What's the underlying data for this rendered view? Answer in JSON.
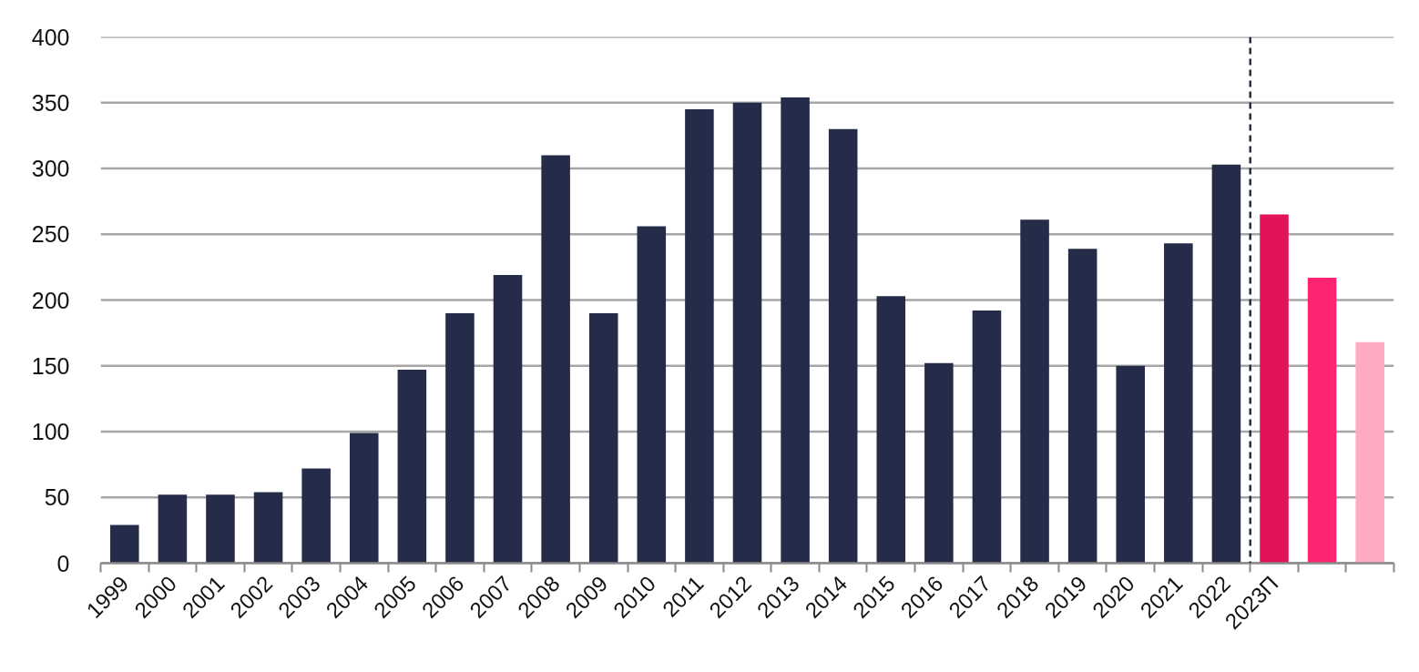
{
  "chart_data": {
    "type": "bar",
    "categories": [
      "1999",
      "2000",
      "2001",
      "2002",
      "2003",
      "2004",
      "2005",
      "2006",
      "2007",
      "2008",
      "2009",
      "2010",
      "2011",
      "2012",
      "2013",
      "2014",
      "2015",
      "2016",
      "2017",
      "2018",
      "2019",
      "2020",
      "2021",
      "2022",
      "2023П",
      null,
      null
    ],
    "values": [
      29,
      52,
      52,
      54,
      72,
      99,
      147,
      190,
      219,
      310,
      190,
      256,
      345,
      350,
      354,
      330,
      203,
      152,
      192,
      261,
      239,
      150,
      243,
      303,
      265,
      217,
      168
    ],
    "colors": [
      "#252c4a",
      "#252c4a",
      "#252c4a",
      "#252c4a",
      "#252c4a",
      "#252c4a",
      "#252c4a",
      "#252c4a",
      "#252c4a",
      "#252c4a",
      "#252c4a",
      "#252c4a",
      "#252c4a",
      "#252c4a",
      "#252c4a",
      "#252c4a",
      "#252c4a",
      "#252c4a",
      "#252c4a",
      "#252c4a",
      "#252c4a",
      "#252c4a",
      "#252c4a",
      "#252c4a",
      "#e2125a",
      "#ff2472",
      "#ffaac2"
    ],
    "ylim": [
      0,
      400
    ],
    "yticks": [
      0,
      50,
      100,
      150,
      200,
      250,
      300,
      350,
      400
    ],
    "grid": "y",
    "ref_lines": [
      {
        "axis": "x",
        "value": "2023П",
        "color": "#252c4a",
        "line_style": "dashed"
      }
    ]
  }
}
